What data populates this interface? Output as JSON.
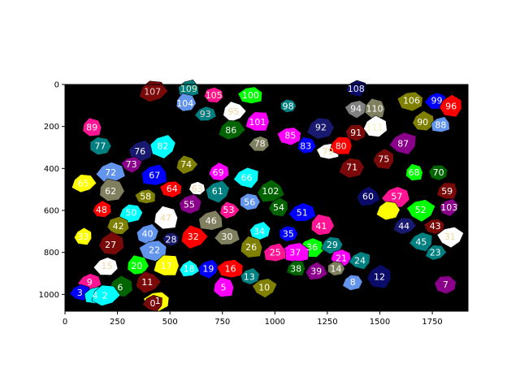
{
  "plot": {
    "x_ticks": [
      "0",
      "250",
      "500",
      "750",
      "1000",
      "1250",
      "1500",
      "1750"
    ],
    "y_ticks": [
      "0",
      "200",
      "400",
      "600",
      "800",
      "1000"
    ],
    "xlim": [
      0,
      1920
    ],
    "ylim": [
      1080,
      0
    ],
    "background": "#000000"
  },
  "segments": [
    {
      "id": "107",
      "x": 417,
      "y": 32,
      "color": "#7a0a0a",
      "text": "#f0d0d0"
    },
    {
      "id": "109",
      "x": 590,
      "y": 19,
      "color": "#008080",
      "text": "#e8e8c0"
    },
    {
      "id": "105",
      "x": 709,
      "y": 51,
      "color": "#ff1493",
      "text": "#f8f8c8"
    },
    {
      "id": "104",
      "x": 572,
      "y": 89,
      "color": "#6495ed",
      "text": "#ffffff"
    },
    {
      "id": "100",
      "x": 884,
      "y": 51,
      "color": "#00ff00",
      "text": "#ffffff"
    },
    {
      "id": "95",
      "x": 803,
      "y": 127,
      "color": "#ffffff",
      "text": "#f0d8a0"
    },
    {
      "id": "93",
      "x": 669,
      "y": 140,
      "color": "#008080",
      "text": "#f0d0d0"
    },
    {
      "id": "101",
      "x": 917,
      "y": 178,
      "color": "#ff00ff",
      "text": "#ffffff"
    },
    {
      "id": "86",
      "x": 791,
      "y": 216,
      "color": "#006400",
      "text": "#f0f0f0"
    },
    {
      "id": "78",
      "x": 928,
      "y": 280,
      "color": "#808060",
      "text": "#f8f8f8"
    },
    {
      "id": "98",
      "x": 1063,
      "y": 102,
      "color": "#008080",
      "text": "#ffffff"
    },
    {
      "id": "85",
      "x": 1074,
      "y": 242,
      "color": "#ff00ff",
      "text": "#ffffff"
    },
    {
      "id": "83",
      "x": 1147,
      "y": 293,
      "color": "#0000ff",
      "text": "#f0f0f0"
    },
    {
      "id": "92",
      "x": 1219,
      "y": 204,
      "color": "#191970",
      "text": "#f0f0f0"
    },
    {
      "id": "79",
      "x": 1254,
      "y": 318,
      "color": "#ffffff",
      "text": "#f0d8a0"
    },
    {
      "id": "80",
      "x": 1315,
      "y": 293,
      "color": "#ff0000",
      "text": "#f0f0f0"
    },
    {
      "id": "108",
      "x": 1387,
      "y": 19,
      "color": "#0b0b6a",
      "text": "#f0f0f0"
    },
    {
      "id": "94",
      "x": 1386,
      "y": 115,
      "color": "#808080",
      "text": "#f8f8f8"
    },
    {
      "id": "110",
      "x": 1475,
      "y": 115,
      "color": "#808060",
      "text": "#ffffff"
    },
    {
      "id": "106",
      "x": 1651,
      "y": 76,
      "color": "#808000",
      "text": "#ffffff"
    },
    {
      "id": "99",
      "x": 1771,
      "y": 76,
      "color": "#0000ff",
      "text": "#ffffff"
    },
    {
      "id": "96",
      "x": 1839,
      "y": 102,
      "color": "#ff0000",
      "text": "#ffffff"
    },
    {
      "id": "91",
      "x": 1386,
      "y": 229,
      "color": "#7a0a0a",
      "text": "#ffffff"
    },
    {
      "id": "111",
      "x": 1475,
      "y": 204,
      "color": "#ffffff",
      "text": "#f0f0b0"
    },
    {
      "id": "90",
      "x": 1704,
      "y": 178,
      "color": "#808000",
      "text": "#ffffff"
    },
    {
      "id": "88",
      "x": 1790,
      "y": 191,
      "color": "#6495ed",
      "text": "#ffffff"
    },
    {
      "id": "87",
      "x": 1611,
      "y": 280,
      "color": "#8b008b",
      "text": "#ffffff"
    },
    {
      "id": "75",
      "x": 1519,
      "y": 355,
      "color": "#7a0a0a",
      "text": "#ffffff"
    },
    {
      "id": "71",
      "x": 1367,
      "y": 393,
      "color": "#7a0a0a",
      "text": "#ffffff"
    },
    {
      "id": "68",
      "x": 1663,
      "y": 419,
      "color": "#00ff00",
      "text": "#ffffff"
    },
    {
      "id": "70",
      "x": 1779,
      "y": 419,
      "color": "#006400",
      "text": "#ffffff"
    },
    {
      "id": "59",
      "x": 1820,
      "y": 508,
      "color": "#7a0a0a",
      "text": "#ffffff"
    },
    {
      "id": "89",
      "x": 128,
      "y": 204,
      "color": "#ff1493",
      "text": "#ffffff"
    },
    {
      "id": "77",
      "x": 168,
      "y": 293,
      "color": "#008080",
      "text": "#ffffff"
    },
    {
      "id": "76",
      "x": 357,
      "y": 318,
      "color": "#191970",
      "text": "#ffffff"
    },
    {
      "id": "82",
      "x": 466,
      "y": 293,
      "color": "#00ffff",
      "text": "#ffffff"
    },
    {
      "id": "73",
      "x": 316,
      "y": 380,
      "color": "#8b008b",
      "text": "#ffffff"
    },
    {
      "id": "72",
      "x": 217,
      "y": 419,
      "color": "#6495ed",
      "text": "#ffffff"
    },
    {
      "id": "67",
      "x": 427,
      "y": 431,
      "color": "#0000ff",
      "text": "#ffffff"
    },
    {
      "id": "74",
      "x": 577,
      "y": 380,
      "color": "#808000",
      "text": "#ffffff"
    },
    {
      "id": "69",
      "x": 730,
      "y": 419,
      "color": "#ff00ff",
      "text": "#ffffff"
    },
    {
      "id": "66",
      "x": 865,
      "y": 444,
      "color": "#00ffff",
      "text": "#ffffff"
    },
    {
      "id": "65",
      "x": 87,
      "y": 470,
      "color": "#ffff00",
      "text": "#ffffff"
    },
    {
      "id": "62",
      "x": 217,
      "y": 508,
      "color": "#808060",
      "text": "#ffffff"
    },
    {
      "id": "58",
      "x": 384,
      "y": 533,
      "color": "#808000",
      "text": "#ffffff"
    },
    {
      "id": "64",
      "x": 510,
      "y": 495,
      "color": "#ff0000",
      "text": "#ffffff"
    },
    {
      "id": "63",
      "x": 630,
      "y": 495,
      "color": "#ffffff",
      "text": "#f0d8a0"
    },
    {
      "id": "61",
      "x": 727,
      "y": 508,
      "color": "#008080",
      "text": "#ffffff"
    },
    {
      "id": "102",
      "x": 979,
      "y": 508,
      "color": "#006400",
      "text": "#ffffff"
    },
    {
      "id": "56",
      "x": 880,
      "y": 559,
      "color": "#6495ed",
      "text": "#ffffff"
    },
    {
      "id": "55",
      "x": 592,
      "y": 571,
      "color": "#8b008b",
      "text": "#ffffff"
    },
    {
      "id": "54",
      "x": 1018,
      "y": 584,
      "color": "#006400",
      "text": "#ffffff"
    },
    {
      "id": "53",
      "x": 780,
      "y": 597,
      "color": "#ff1493",
      "text": "#ffffff"
    },
    {
      "id": "48",
      "x": 174,
      "y": 597,
      "color": "#ff0000",
      "text": "#ffffff"
    },
    {
      "id": "50",
      "x": 315,
      "y": 610,
      "color": "#00ffff",
      "text": "#ffffff"
    },
    {
      "id": "47",
      "x": 480,
      "y": 635,
      "color": "#ffffff",
      "text": "#f0d8a0"
    },
    {
      "id": "46",
      "x": 696,
      "y": 648,
      "color": "#808060",
      "text": "#ffffff"
    },
    {
      "id": "42",
      "x": 254,
      "y": 673,
      "color": "#808000",
      "text": "#ffffff"
    },
    {
      "id": "40",
      "x": 393,
      "y": 711,
      "color": "#6495ed",
      "text": "#ffffff"
    },
    {
      "id": "51",
      "x": 1130,
      "y": 610,
      "color": "#0000ff",
      "text": "#ffffff"
    },
    {
      "id": "41",
      "x": 1221,
      "y": 673,
      "color": "#ff1493",
      "text": "#ffffff"
    },
    {
      "id": "60",
      "x": 1444,
      "y": 533,
      "color": "#0b0b6a",
      "text": "#ffffff"
    },
    {
      "id": "57",
      "x": 1581,
      "y": 533,
      "color": "#ff1493",
      "text": "#ffffff"
    },
    {
      "id": "50b",
      "x": 1541,
      "y": 597,
      "color": "#ffff00",
      "text": "#ffffff",
      "label": ""
    },
    {
      "id": "52",
      "x": 1694,
      "y": 597,
      "color": "#00ff00",
      "text": "#ffffff"
    },
    {
      "id": "103",
      "x": 1830,
      "y": 584,
      "color": "#8b008b",
      "text": "#ffffff"
    },
    {
      "id": "44",
      "x": 1615,
      "y": 673,
      "color": "#191970",
      "text": "#ffffff"
    },
    {
      "id": "43",
      "x": 1764,
      "y": 673,
      "color": "#7a0a0a",
      "text": "#ffffff"
    },
    {
      "id": "31",
      "x": 1834,
      "y": 724,
      "color": "#ffffff",
      "text": "#f0d8a0"
    },
    {
      "id": "45",
      "x": 1697,
      "y": 749,
      "color": "#008080",
      "text": "#ffffff"
    },
    {
      "id": "23",
      "x": 1764,
      "y": 800,
      "color": "#008080",
      "text": "#ffffff"
    },
    {
      "id": "33",
      "x": 87,
      "y": 724,
      "color": "#ffff00",
      "text": "#ffffff"
    },
    {
      "id": "27",
      "x": 217,
      "y": 762,
      "color": "#7a0a0a",
      "text": "#ffffff"
    },
    {
      "id": "28",
      "x": 505,
      "y": 737,
      "color": "#191970",
      "text": "#ffffff"
    },
    {
      "id": "32",
      "x": 611,
      "y": 724,
      "color": "#ff0000",
      "text": "#ffffff"
    },
    {
      "id": "30",
      "x": 772,
      "y": 724,
      "color": "#808060",
      "text": "#ffffff"
    },
    {
      "id": "26",
      "x": 887,
      "y": 775,
      "color": "#808000",
      "text": "#ffffff"
    },
    {
      "id": "34",
      "x": 925,
      "y": 698,
      "color": "#00ffff",
      "text": "#ffffff"
    },
    {
      "id": "35",
      "x": 1064,
      "y": 711,
      "color": "#0000ff",
      "text": "#ffffff"
    },
    {
      "id": "36",
      "x": 1177,
      "y": 775,
      "color": "#00ff00",
      "text": "#ffffff"
    },
    {
      "id": "37",
      "x": 1097,
      "y": 800,
      "color": "#ff00ff",
      "text": "#ffffff"
    },
    {
      "id": "29",
      "x": 1273,
      "y": 762,
      "color": "#008080",
      "text": "#ffffff"
    },
    {
      "id": "25",
      "x": 1002,
      "y": 800,
      "color": "#ff1493",
      "text": "#ffffff"
    },
    {
      "id": "22",
      "x": 426,
      "y": 787,
      "color": "#6495ed",
      "text": "#ffffff"
    },
    {
      "id": "21",
      "x": 1316,
      "y": 826,
      "color": "#ff00ff",
      "text": "#ffffff"
    },
    {
      "id": "24",
      "x": 1405,
      "y": 838,
      "color": "#008080",
      "text": "#ffffff"
    },
    {
      "id": "15",
      "x": 199,
      "y": 864,
      "color": "#ffffff",
      "text": "#f0d8a0"
    },
    {
      "id": "20",
      "x": 342,
      "y": 864,
      "color": "#00ff00",
      "text": "#ffffff"
    },
    {
      "id": "17",
      "x": 483,
      "y": 864,
      "color": "#ffff00",
      "text": "#ffffff"
    },
    {
      "id": "18",
      "x": 591,
      "y": 877,
      "color": "#00ffff",
      "text": "#ffffff"
    },
    {
      "id": "19",
      "x": 683,
      "y": 877,
      "color": "#0000ff",
      "text": "#ffffff"
    },
    {
      "id": "16",
      "x": 788,
      "y": 877,
      "color": "#ff0000",
      "text": "#ffffff"
    },
    {
      "id": "38",
      "x": 1100,
      "y": 877,
      "color": "#006400",
      "text": "#ffffff"
    },
    {
      "id": "39",
      "x": 1197,
      "y": 889,
      "color": "#8b008b",
      "text": "#ffffff"
    },
    {
      "id": "14",
      "x": 1291,
      "y": 877,
      "color": "#808060",
      "text": "#ffffff"
    },
    {
      "id": "13",
      "x": 878,
      "y": 915,
      "color": "#008080",
      "text": "#ffffff"
    },
    {
      "id": "12",
      "x": 1498,
      "y": 915,
      "color": "#0b0b6a",
      "text": "#ffffff"
    },
    {
      "id": "8",
      "x": 1371,
      "y": 940,
      "color": "#6495ed",
      "text": "#ffffff"
    },
    {
      "id": "9",
      "x": 117,
      "y": 940,
      "color": "#ff1493",
      "text": "#ffffff"
    },
    {
      "id": "11",
      "x": 392,
      "y": 940,
      "color": "#7a0a0a",
      "text": "#ffffff"
    },
    {
      "id": "6",
      "x": 263,
      "y": 966,
      "color": "#006400",
      "text": "#ffffff"
    },
    {
      "id": "5",
      "x": 755,
      "y": 966,
      "color": "#ff00ff",
      "text": "#ffffff"
    },
    {
      "id": "10",
      "x": 949,
      "y": 966,
      "color": "#808000",
      "text": "#ffffff"
    },
    {
      "id": "7",
      "x": 1813,
      "y": 953,
      "color": "#8b008b",
      "text": "#ffffff"
    },
    {
      "id": "3",
      "x": 71,
      "y": 991,
      "color": "#0000ff",
      "text": "#ffffff"
    },
    {
      "id": "4",
      "x": 143,
      "y": 1004,
      "color": "#00ffff",
      "text": "#ffffff"
    },
    {
      "id": "2",
      "x": 190,
      "y": 1004,
      "color": "#00ffff",
      "text": "#ffffff"
    },
    {
      "id": "1",
      "x": 442,
      "y": 1029,
      "color": "#ffff00",
      "text": "#ffffff"
    },
    {
      "id": "0",
      "x": 418,
      "y": 1042,
      "color": "#7a0a0a",
      "text": "#ffffff"
    }
  ]
}
